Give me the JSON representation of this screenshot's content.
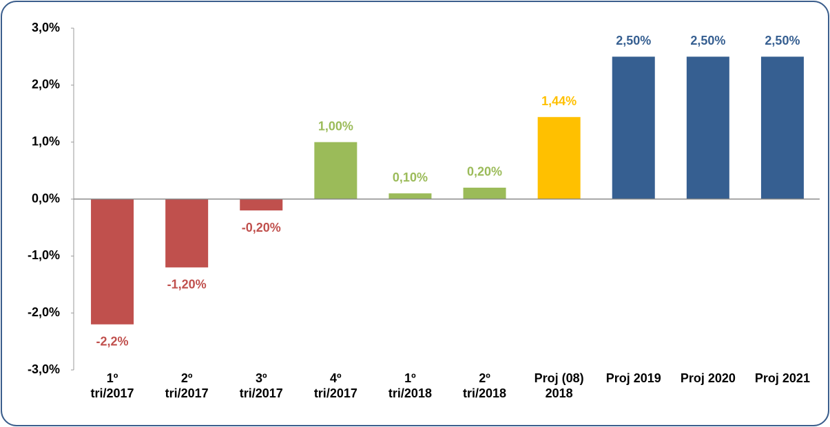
{
  "chart_data": {
    "type": "bar",
    "categories": [
      [
        "1º",
        "tri/2017"
      ],
      [
        "2º",
        "tri/2017"
      ],
      [
        "3º",
        "tri/2017"
      ],
      [
        "4º",
        "tri/2017"
      ],
      [
        "1º",
        "tri/2018"
      ],
      [
        "2º",
        "tri/2018"
      ],
      [
        "Proj (08)",
        "2018"
      ],
      [
        "Proj 2019"
      ],
      [
        "Proj 2020"
      ],
      [
        "Proj 2021"
      ]
    ],
    "values": [
      -2.2,
      -1.2,
      -0.2,
      1.0,
      0.1,
      0.2,
      1.44,
      2.5,
      2.5,
      2.5
    ],
    "value_labels": [
      "-2,2%",
      "-1,20%",
      "-0,20%",
      "1,00%",
      "0,10%",
      "0,20%",
      "1,44%",
      "2,50%",
      "2,50%",
      "2,50%"
    ],
    "colors": [
      "#c0504d",
      "#c0504d",
      "#c0504d",
      "#9bbb59",
      "#9bbb59",
      "#9bbb59",
      "#ffc000",
      "#365f91",
      "#365f91",
      "#365f91"
    ],
    "ylim": [
      -3,
      3
    ],
    "yticks": [
      {
        "value": -3,
        "label": "-3,0%"
      },
      {
        "value": -2,
        "label": "-2,0%"
      },
      {
        "value": -1,
        "label": "-1,0%"
      },
      {
        "value": 0,
        "label": "0,0%"
      },
      {
        "value": 1,
        "label": "1,0%"
      },
      {
        "value": 2,
        "label": "2,0%"
      },
      {
        "value": 3,
        "label": "3,0%"
      }
    ],
    "grid": false
  }
}
